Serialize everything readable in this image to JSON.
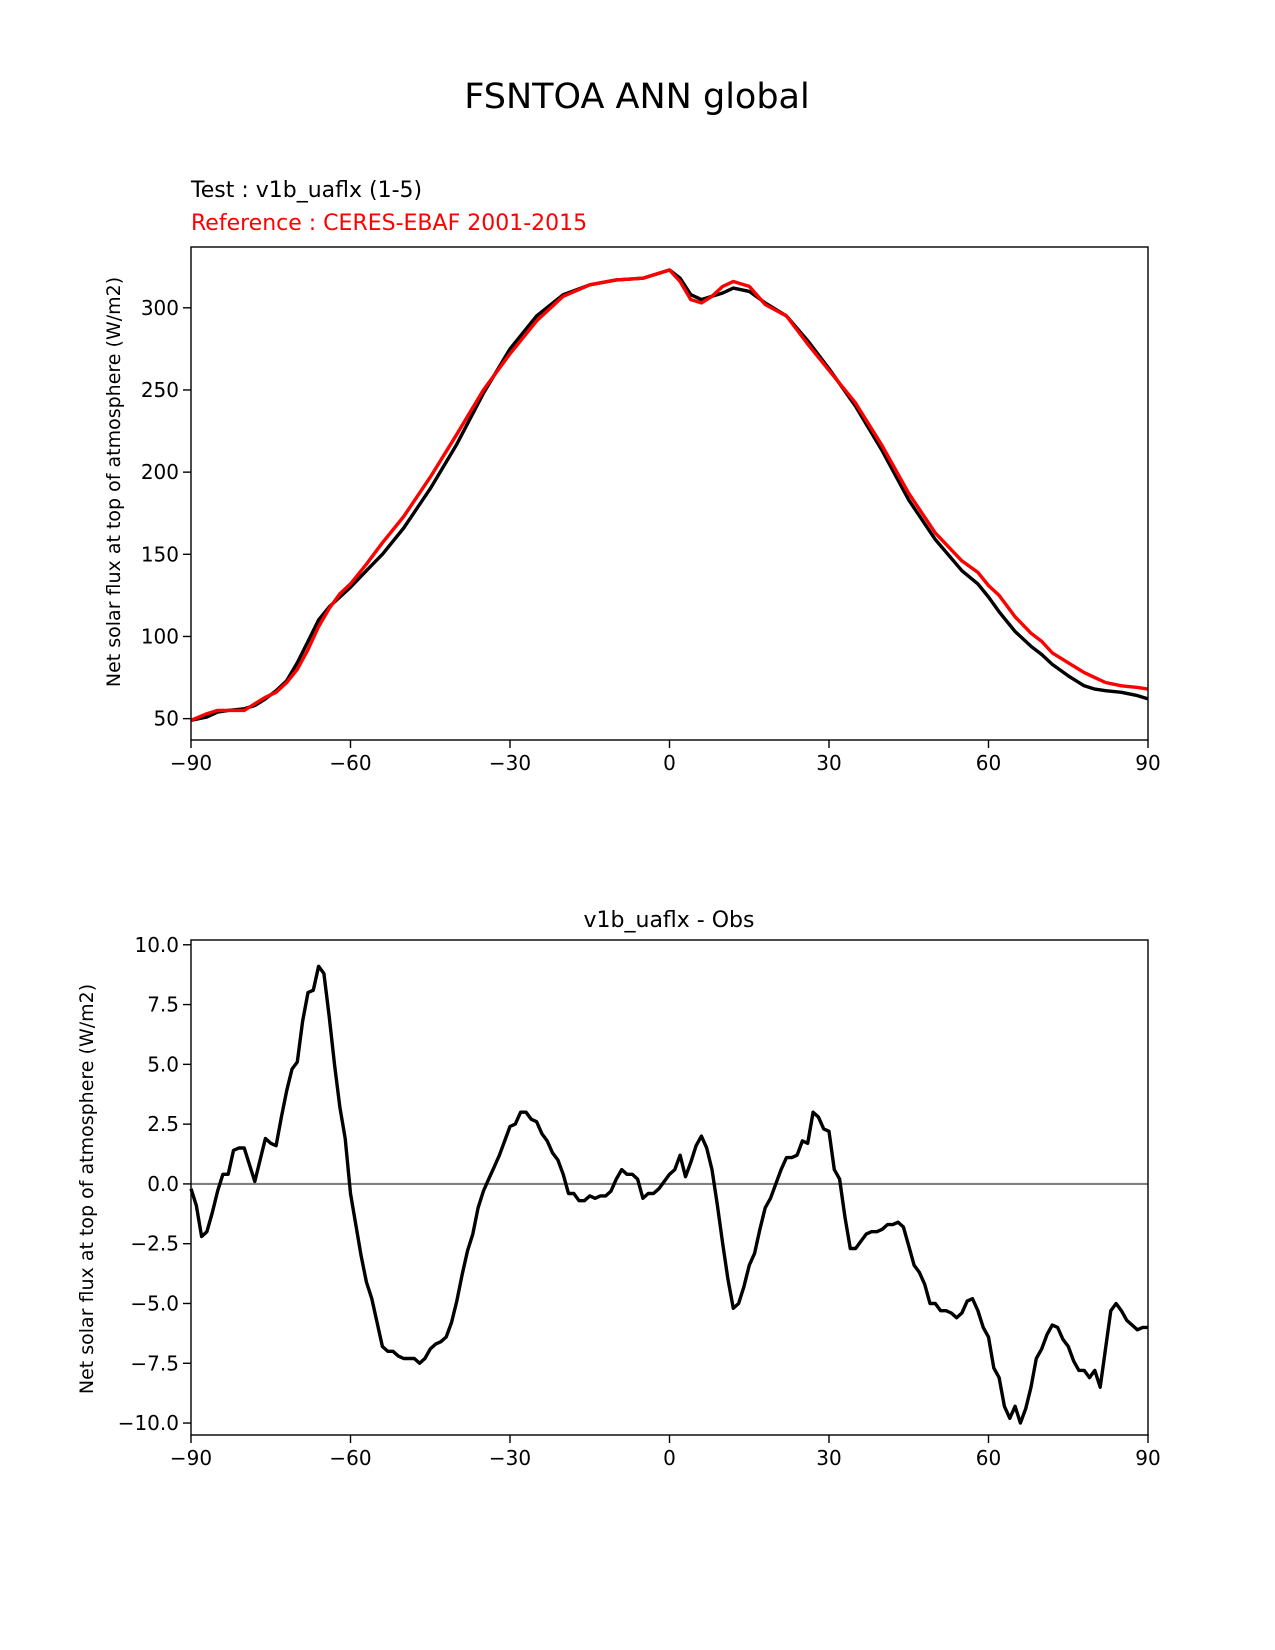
{
  "title": "FSNTOA ANN global",
  "chart_data": [
    {
      "type": "line",
      "subtitle_test": "Test : v1b_uaflx (1-5)",
      "subtitle_ref": "Reference : CERES-EBAF 2001-2015",
      "ylabel": "Net solar flux at top of atmosphere (W/m2)",
      "xlabel": "",
      "xlim": [
        -90,
        90
      ],
      "ylim": [
        37,
        337
      ],
      "xticks": [
        -90,
        -60,
        -30,
        0,
        30,
        60,
        90
      ],
      "xtick_labels": [
        "−90",
        "−60",
        "−30",
        "0",
        "30",
        "60",
        "90"
      ],
      "yticks": [
        50,
        100,
        150,
        200,
        250,
        300
      ],
      "ytick_labels": [
        "50",
        "100",
        "150",
        "200",
        "250",
        "300"
      ],
      "series": [
        {
          "color": "#000000",
          "x": [
            -90,
            -87,
            -85,
            -83,
            -80,
            -78,
            -76,
            -74,
            -72,
            -70,
            -68,
            -66,
            -64,
            -62,
            -60,
            -57,
            -54,
            -50,
            -45,
            -40,
            -35,
            -30,
            -25,
            -20,
            -15,
            -10,
            -5,
            0,
            2,
            4,
            6,
            8,
            10,
            12,
            15,
            18,
            22,
            26,
            30,
            35,
            40,
            45,
            50,
            55,
            58,
            60,
            62,
            65,
            68,
            70,
            72,
            75,
            78,
            80,
            82,
            85,
            88,
            90
          ],
          "y": [
            49,
            51,
            54,
            55,
            56,
            58,
            62,
            67,
            73,
            84,
            97,
            110,
            118,
            124,
            130,
            140,
            150,
            166,
            190,
            217,
            248,
            275,
            295,
            308,
            314,
            317,
            318,
            323,
            318,
            308,
            305,
            307,
            309,
            312,
            310,
            303,
            295,
            280,
            263,
            240,
            213,
            183,
            159,
            140,
            132,
            124,
            115,
            103,
            94,
            89,
            83,
            76,
            70,
            68,
            67,
            66,
            64,
            62
          ]
        },
        {
          "color": "#ff0000",
          "x": [
            -90,
            -87,
            -85,
            -83,
            -80,
            -78,
            -76,
            -74,
            -72,
            -70,
            -68,
            -66,
            -64,
            -62,
            -60,
            -57,
            -54,
            -50,
            -45,
            -40,
            -35,
            -30,
            -25,
            -20,
            -15,
            -10,
            -5,
            0,
            2,
            4,
            6,
            8,
            10,
            12,
            15,
            18,
            22,
            26,
            30,
            35,
            40,
            45,
            50,
            55,
            58,
            60,
            62,
            65,
            68,
            70,
            72,
            75,
            78,
            80,
            82,
            85,
            88,
            90
          ],
          "y": [
            49,
            53,
            55,
            55,
            55,
            59,
            63,
            66,
            72,
            80,
            92,
            106,
            117,
            126,
            132,
            144,
            157,
            173,
            197,
            223,
            250,
            272,
            292,
            307,
            314,
            317,
            318,
            323,
            316,
            305,
            303,
            307,
            313,
            316,
            313,
            302,
            295,
            278,
            262,
            242,
            216,
            187,
            163,
            146,
            139,
            131,
            125,
            112,
            102,
            97,
            90,
            84,
            78,
            75,
            72,
            70,
            69,
            68
          ]
        }
      ]
    },
    {
      "type": "line",
      "title": "v1b_uaflx - Obs",
      "ylabel": "Net solar flux at top of atmosphere (W/m2)",
      "xlabel": "",
      "xlim": [
        -90,
        90
      ],
      "ylim": [
        -10.5,
        10.2
      ],
      "xticks": [
        -90,
        -60,
        -30,
        0,
        30,
        60,
        90
      ],
      "xtick_labels": [
        "−90",
        "−60",
        "−30",
        "0",
        "30",
        "60",
        "90"
      ],
      "yticks": [
        -10,
        -7.5,
        -5,
        -2.5,
        0,
        2.5,
        5,
        7.5,
        10
      ],
      "ytick_labels": [
        "−10.0",
        "−7.5",
        "−5.0",
        "−2.5",
        "0.0",
        "2.5",
        "5.0",
        "7.5",
        "10.0"
      ],
      "zero_line_color": "#808080",
      "series": [
        {
          "color": "#000000",
          "x": [
            -90,
            -89,
            -88,
            -87,
            -86,
            -85,
            -84,
            -83,
            -82,
            -81,
            -80,
            -79,
            -78,
            -77,
            -76,
            -75,
            -74,
            -73,
            -72,
            -71,
            -70,
            -69,
            -68,
            -67,
            -66,
            -65,
            -64,
            -63,
            -62,
            -61,
            -60,
            -59,
            -58,
            -57,
            -56,
            -55,
            -54,
            -53,
            -52,
            -51,
            -50,
            -49,
            -48,
            -47,
            -46,
            -45,
            -44,
            -43,
            -42,
            -41,
            -40,
            -39,
            -38,
            -37,
            -36,
            -35,
            -34,
            -33,
            -32,
            -31,
            -30,
            -29,
            -28,
            -27,
            -26,
            -25,
            -24,
            -23,
            -22,
            -21,
            -20,
            -19,
            -18,
            -17,
            -16,
            -15,
            -14,
            -13,
            -12,
            -11,
            -10,
            -9,
            -8,
            -7,
            -6,
            -5,
            -4,
            -3,
            -2,
            -1,
            0,
            1,
            2,
            3,
            4,
            5,
            6,
            7,
            8,
            9,
            10,
            11,
            12,
            13,
            14,
            15,
            16,
            17,
            18,
            19,
            20,
            21,
            22,
            23,
            24,
            25,
            26,
            27,
            28,
            29,
            30,
            31,
            32,
            33,
            34,
            35,
            36,
            37,
            38,
            39,
            40,
            41,
            42,
            43,
            44,
            45,
            46,
            47,
            48,
            49,
            50,
            51,
            52,
            53,
            54,
            55,
            56,
            57,
            58,
            59,
            60,
            61,
            62,
            63,
            64,
            65,
            66,
            67,
            68,
            69,
            70,
            71,
            72,
            73,
            74,
            75,
            76,
            77,
            78,
            79,
            80,
            81,
            82,
            83,
            84,
            85,
            86,
            87,
            88,
            89,
            90
          ],
          "y": [
            -0.2,
            -0.9,
            -2.2,
            -2.0,
            -1.2,
            -0.3,
            0.4,
            0.4,
            1.4,
            1.5,
            1.5,
            0.8,
            0.1,
            1.0,
            1.9,
            1.7,
            1.6,
            2.8,
            3.9,
            4.8,
            5.1,
            6.8,
            8.0,
            8.1,
            9.1,
            8.8,
            7.0,
            5.0,
            3.2,
            1.9,
            -0.4,
            -1.7,
            -3.0,
            -4.1,
            -4.8,
            -5.8,
            -6.8,
            -7.0,
            -7.0,
            -7.2,
            -7.3,
            -7.3,
            -7.3,
            -7.5,
            -7.3,
            -6.9,
            -6.7,
            -6.6,
            -6.4,
            -5.8,
            -4.9,
            -3.8,
            -2.8,
            -2.1,
            -1.0,
            -0.3,
            0.2,
            0.7,
            1.2,
            1.8,
            2.4,
            2.5,
            3.0,
            3.0,
            2.7,
            2.6,
            2.1,
            1.8,
            1.3,
            1.0,
            0.4,
            -0.4,
            -0.4,
            -0.7,
            -0.7,
            -0.5,
            -0.6,
            -0.5,
            -0.5,
            -0.3,
            0.2,
            0.6,
            0.4,
            0.4,
            0.2,
            -0.6,
            -0.4,
            -0.4,
            -0.2,
            0.1,
            0.4,
            0.6,
            1.2,
            0.3,
            0.9,
            1.6,
            2.0,
            1.5,
            0.6,
            -0.9,
            -2.5,
            -4.0,
            -5.2,
            -5.0,
            -4.3,
            -3.4,
            -2.9,
            -1.9,
            -1.0,
            -0.6,
            0.0,
            0.6,
            1.1,
            1.1,
            1.2,
            1.8,
            1.7,
            3.0,
            2.8,
            2.3,
            2.2,
            0.6,
            0.2,
            -1.4,
            -2.7,
            -2.7,
            -2.4,
            -2.1,
            -2.0,
            -2.0,
            -1.9,
            -1.7,
            -1.7,
            -1.6,
            -1.8,
            -2.6,
            -3.4,
            -3.7,
            -4.2,
            -5.0,
            -5.0,
            -5.3,
            -5.3,
            -5.4,
            -5.6,
            -5.4,
            -4.9,
            -4.8,
            -5.3,
            -6.0,
            -6.4,
            -7.7,
            -8.1,
            -9.3,
            -9.8,
            -9.3,
            -10.0,
            -9.4,
            -8.5,
            -7.3,
            -6.9,
            -6.3,
            -5.9,
            -6.0,
            -6.5,
            -6.8,
            -7.4,
            -7.8,
            -7.8,
            -8.1,
            -7.8,
            -8.5,
            -6.9,
            -5.3,
            -5.0,
            -5.3,
            -5.7,
            -5.9,
            -6.1,
            -6.0,
            -6.0
          ]
        }
      ]
    }
  ]
}
